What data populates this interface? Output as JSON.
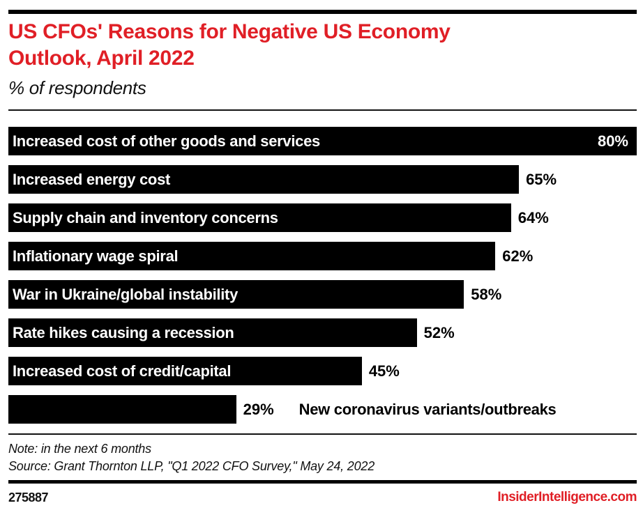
{
  "colors": {
    "accent_red": "#e01f26",
    "bar_black": "#000000",
    "bar_text_white": "#ffffff"
  },
  "header": {
    "title": "US CFOs' Reasons for Negative US Economy Outlook, April 2022",
    "title_lines": [
      "US CFOs' Reasons for Negative US Economy",
      "Outlook, April 2022"
    ],
    "subtitle": "% of respondents"
  },
  "chart_data": {
    "type": "bar",
    "orientation": "horizontal",
    "title": "US CFOs' Reasons for Negative US Economy Outlook, April 2022",
    "subtitle": "% of respondents",
    "unit": "% of respondents",
    "categories": [
      "Increased cost of other goods and services",
      "Increased energy cost",
      "Supply chain and inventory concerns",
      "Inflationary wage spiral",
      "War in Ukraine/global instability",
      "Rate hikes causing a recession",
      "Increased cost of credit/capital",
      "New coronavirus variants/outbreaks"
    ],
    "values": [
      80,
      65,
      64,
      62,
      58,
      52,
      45,
      29
    ],
    "value_labels": [
      "80%",
      "65%",
      "64%",
      "62%",
      "58%",
      "52%",
      "45%",
      "29%"
    ],
    "xlim": [
      0,
      80
    ],
    "grid": false,
    "legend": false,
    "bar_color": "#000000"
  },
  "footer": {
    "note": "Note: in the next 6 months",
    "source": "Source: Grant Thornton LLP, \"Q1 2022 CFO Survey,\" May 24, 2022",
    "chart_id": "275887",
    "brand": "InsiderIntelligence.com"
  }
}
